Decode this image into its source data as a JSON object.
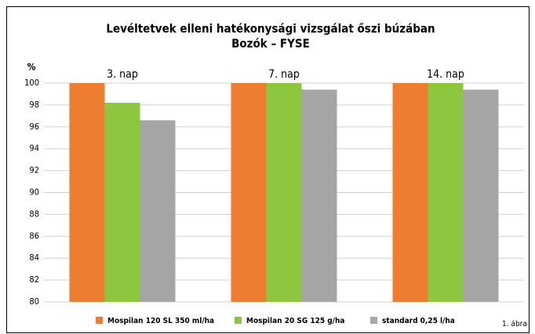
{
  "chart_data": {
    "type": "bar",
    "title": "Levéltetvek elleni hatékonysági vizsgálat őszi búzában",
    "subtitle": "Bozók – FYSE",
    "y_label": "%",
    "annotation": "1. ábra",
    "categories": [
      "3. nap",
      "7. nap",
      "14. nap"
    ],
    "series": [
      {
        "name": "Mospilan 120 SL 350 ml/ha",
        "color": "#ed7d31",
        "values": [
          100,
          100,
          100
        ]
      },
      {
        "name": "Mospilan 20 SG 125 g/ha",
        "color": "#8dc63f",
        "values": [
          98.2,
          100,
          100
        ]
      },
      {
        "name": "standard 0,25 l/ha",
        "color": "#a5a5a5",
        "values": [
          96.6,
          99.4,
          99.4
        ]
      }
    ],
    "ylim": [
      80,
      100
    ],
    "yticks": [
      80,
      82,
      84,
      86,
      88,
      90,
      92,
      94,
      96,
      98,
      100
    ],
    "grid": true,
    "legend": "bottom"
  }
}
